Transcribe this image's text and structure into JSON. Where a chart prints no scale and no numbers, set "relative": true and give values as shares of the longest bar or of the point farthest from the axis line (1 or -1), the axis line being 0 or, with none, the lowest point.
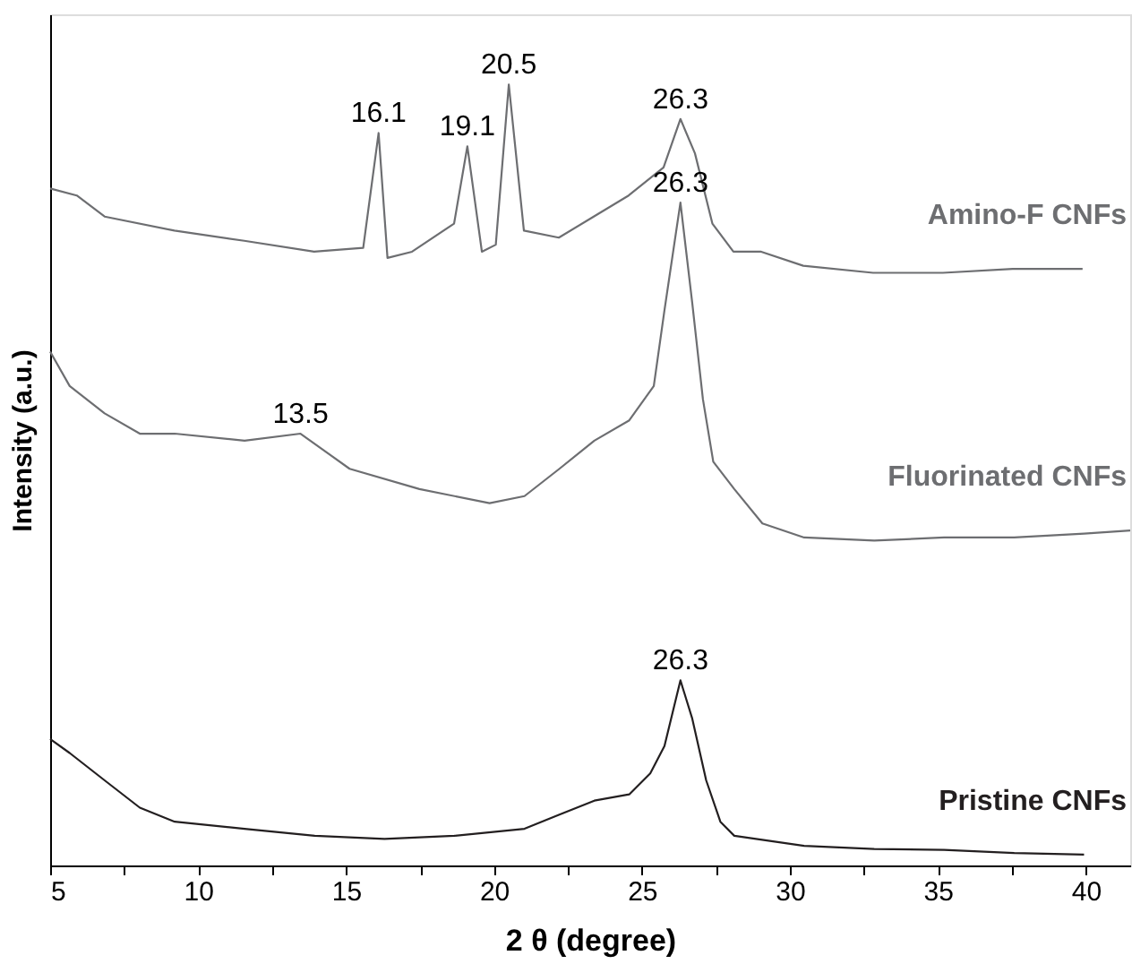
{
  "chart_data": {
    "type": "line",
    "relative": true,
    "xlabel": "2 θ (degree)",
    "ylabel": "Intensity (a.u.)",
    "xlim": [
      5,
      41.5
    ],
    "xticks": [
      5,
      {
        "value": 7.5,
        "label": null
      },
      10,
      {
        "value": 12.5,
        "label": null
      },
      15,
      {
        "value": 17.5,
        "label": null
      },
      20,
      {
        "value": 22.5,
        "label": null
      },
      25,
      {
        "value": 27.5,
        "label": null
      },
      30,
      {
        "value": 32.5,
        "label": null
      },
      35,
      {
        "value": 37.5,
        "label": null
      },
      40
    ],
    "tick_labels": "x",
    "grid": false,
    "legend": false,
    "marker": "none",
    "line_style": "solid",
    "series": [
      {
        "name": "Amino-F CNFs",
        "color": "#6d6e71",
        "x": [
          5,
          5.9,
          6.84,
          9.2,
          11.56,
          13.92,
          15.58,
          16.1,
          16.4,
          17.23,
          18.65,
          19.1,
          19.59,
          20.06,
          20.5,
          21.01,
          22.19,
          23.37,
          24.55,
          25.73,
          26.3,
          26.79,
          27.38,
          28.09,
          29.03,
          30.45,
          32.81,
          35.17,
          37.53,
          39.89
        ],
        "values": [
          0.867,
          0.858,
          0.831,
          0.813,
          0.8,
          0.786,
          0.791,
          0.938,
          0.778,
          0.786,
          0.822,
          0.921,
          0.786,
          0.795,
          1,
          0.813,
          0.804,
          0.831,
          0.858,
          0.894,
          0.956,
          0.912,
          0.822,
          0.786,
          0.786,
          0.768,
          0.759,
          0.759,
          0.764,
          0.764
        ]
      },
      {
        "name": "Fluorinated CNFs",
        "color": "#6d6e71",
        "x": [
          5,
          5.66,
          6.84,
          8.03,
          9.21,
          11.57,
          13.46,
          15.12,
          17.48,
          19.85,
          21.03,
          22.21,
          23.39,
          24.57,
          25.4,
          25.76,
          26.3,
          26.7,
          27.06,
          27.41,
          28.12,
          29.07,
          30.48,
          32.85,
          35.21,
          37.58,
          39.94,
          41.5
        ],
        "values": [
          0.658,
          0.614,
          0.579,
          0.553,
          0.553,
          0.544,
          0.553,
          0.508,
          0.482,
          0.464,
          0.473,
          0.508,
          0.544,
          0.57,
          0.614,
          0.711,
          0.849,
          0.72,
          0.597,
          0.517,
          0.482,
          0.438,
          0.42,
          0.416,
          0.42,
          0.42,
          0.425,
          0.429
        ]
      },
      {
        "name": "Pristine CNFs",
        "color": "#231f20",
        "x": [
          5,
          5.66,
          6.84,
          8.03,
          9.21,
          11.57,
          13.94,
          16.3,
          18.66,
          21.03,
          22.21,
          23.39,
          24.57,
          25.28,
          25.76,
          26.3,
          26.7,
          27.17,
          27.65,
          28.12,
          30.48,
          32.85,
          35.21,
          37.58,
          39.94
        ],
        "values": [
          0.162,
          0.144,
          0.109,
          0.074,
          0.056,
          0.047,
          0.038,
          0.034,
          0.038,
          0.047,
          0.065,
          0.083,
          0.091,
          0.118,
          0.153,
          0.237,
          0.188,
          0.109,
          0.056,
          0.038,
          0.025,
          0.021,
          0.02,
          0.016,
          0.014
        ]
      }
    ],
    "annotations": [
      {
        "text": "16.1",
        "x": 16.1,
        "y": 0.938
      },
      {
        "text": "19.1",
        "x": 19.1,
        "y": 0.921
      },
      {
        "text": "20.5",
        "x": 20.5,
        "y": 1
      },
      {
        "text": "26.3",
        "x": 26.3,
        "y": 0.956
      },
      {
        "text": "26.3",
        "x": 26.3,
        "y": 0.849
      },
      {
        "text": "13.5",
        "x": 13.46,
        "y": 0.553
      },
      {
        "text": "26.3",
        "x": 26.3,
        "y": 0.237
      }
    ]
  }
}
